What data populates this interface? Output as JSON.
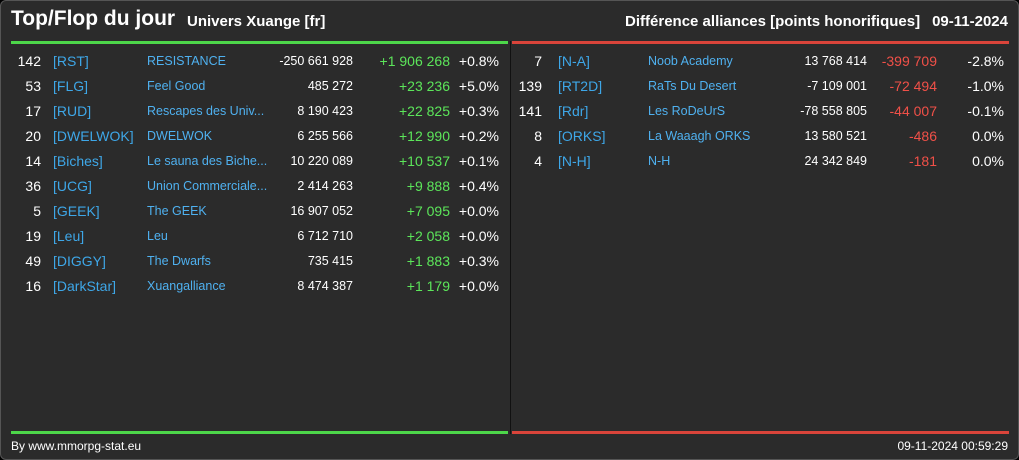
{
  "header": {
    "title": "Top/Flop du jour",
    "subtitle": "Univers Xuange [fr]",
    "ranking_label": "Différence alliances [points honorifiques]",
    "date": "09-11-2024"
  },
  "colors": {
    "positive": "#5ce65a",
    "negative": "#f05048",
    "tag": "#3ea7e8",
    "name": "#4fb1f0"
  },
  "top": [
    {
      "rank": "142",
      "tag": "[RST]",
      "name": "RESISTANCE",
      "value": "-250 661 928",
      "diff": "+1 906 268",
      "pct": "+0.8%"
    },
    {
      "rank": "53",
      "tag": "[FLG]",
      "name": "Feel Good",
      "value": "485 272",
      "diff": "+23 236",
      "pct": "+5.0%"
    },
    {
      "rank": "17",
      "tag": "[RUD]",
      "name": "Rescapes des Univ...",
      "value": "8 190 423",
      "diff": "+22 825",
      "pct": "+0.3%"
    },
    {
      "rank": "20",
      "tag": "[DWELWOK]",
      "name": "DWELWOK",
      "value": "6 255 566",
      "diff": "+12 990",
      "pct": "+0.2%"
    },
    {
      "rank": "14",
      "tag": "[Biches]",
      "name": "Le sauna des Biche...",
      "value": "10 220 089",
      "diff": "+10 537",
      "pct": "+0.1%"
    },
    {
      "rank": "36",
      "tag": "[UCG]",
      "name": "Union Commerciale...",
      "value": "2 414 263",
      "diff": "+9 888",
      "pct": "+0.4%"
    },
    {
      "rank": "5",
      "tag": "[GEEK]",
      "name": "The GEEK",
      "value": "16 907 052",
      "diff": "+7 095",
      "pct": "+0.0%"
    },
    {
      "rank": "19",
      "tag": "[Leu]",
      "name": "Leu",
      "value": "6 712 710",
      "diff": "+2 058",
      "pct": "+0.0%"
    },
    {
      "rank": "49",
      "tag": "[DIGGY]",
      "name": "The Dwarfs",
      "value": "735 415",
      "diff": "+1 883",
      "pct": "+0.3%"
    },
    {
      "rank": "16",
      "tag": "[DarkStar]",
      "name": "Xuangalliance",
      "value": "8 474 387",
      "diff": "+1 179",
      "pct": "+0.0%"
    }
  ],
  "flop": [
    {
      "rank": "7",
      "tag": "[N-A]",
      "name": "Noob Academy",
      "value": "13 768 414",
      "diff": "-399 709",
      "pct": "-2.8%"
    },
    {
      "rank": "139",
      "tag": "[RT2D]",
      "name": "RaTs Du Desert",
      "value": "-7 109 001",
      "diff": "-72 494",
      "pct": "-1.0%"
    },
    {
      "rank": "141",
      "tag": "[Rdr]",
      "name": "Les RoDeUrS",
      "value": "-78 558 805",
      "diff": "-44 007",
      "pct": "-0.1%"
    },
    {
      "rank": "8",
      "tag": "[ORKS]",
      "name": "La Waaagh ORKS",
      "value": "13 580 521",
      "diff": "-486",
      "pct": "0.0%"
    },
    {
      "rank": "4",
      "tag": "[N-H]",
      "name": "N-H",
      "value": "24 342 849",
      "diff": "-181",
      "pct": "0.0%"
    }
  ],
  "footer": {
    "credit": "By www.mmorpg-stat.eu",
    "timestamp": "09-11-2024 00:59:29"
  }
}
